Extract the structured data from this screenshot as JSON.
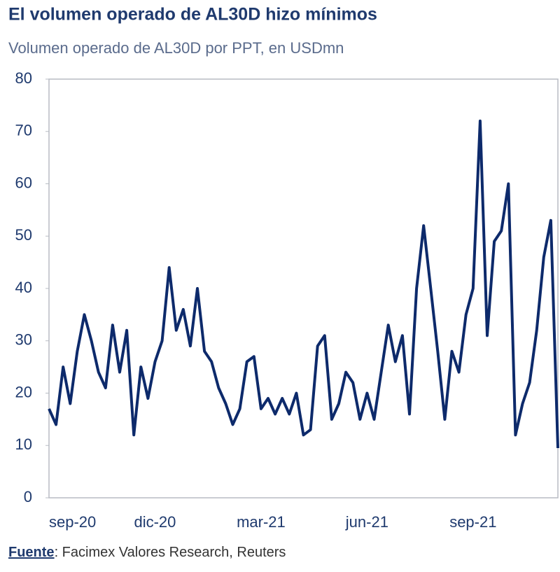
{
  "chart_data": {
    "type": "line",
    "title": "El volumen operado de AL30D hizo mínimos",
    "subtitle": "Volumen operado de AL30D por PPT, en USDmn",
    "source_label": "Fuente",
    "source_text": ": Facimex Valores Research, Reuters",
    "categories": [
      "sep-20",
      null,
      null,
      null,
      null,
      null,
      null,
      null,
      null,
      null,
      null,
      null,
      null,
      null,
      null,
      "dic-20",
      null,
      null,
      null,
      null,
      null,
      null,
      null,
      null,
      null,
      null,
      null,
      null,
      null,
      null,
      "mar-21",
      null,
      null,
      null,
      null,
      null,
      null,
      null,
      null,
      null,
      null,
      null,
      null,
      null,
      null,
      "jun-21",
      null,
      null,
      null,
      null,
      null,
      null,
      null,
      null,
      null,
      null,
      null,
      null,
      null,
      null,
      "sep-21",
      null,
      null,
      null,
      null,
      null,
      null,
      null,
      null,
      null,
      null,
      null,
      null
    ],
    "series": [
      {
        "name": "AL30D",
        "color": "#0d2a6b",
        "values": [
          17,
          14,
          25,
          18,
          28,
          35,
          30,
          24,
          21,
          33,
          24,
          32,
          12,
          25,
          19,
          26,
          30,
          44,
          32,
          36,
          29,
          40,
          28,
          26,
          21,
          18,
          14,
          17,
          26,
          27,
          17,
          19,
          16,
          19,
          16,
          20,
          12,
          13,
          29,
          31,
          15,
          18,
          24,
          22,
          15,
          20,
          15,
          24,
          33,
          26,
          31,
          16,
          40,
          52,
          40,
          28,
          15,
          28,
          24,
          35,
          40,
          72,
          31,
          49,
          51,
          60,
          12,
          18,
          22,
          32,
          46,
          53,
          9.5
        ]
      }
    ],
    "ylim": [
      0,
      80
    ],
    "yticks": [
      0,
      10,
      20,
      30,
      40,
      50,
      60,
      70,
      80
    ],
    "grid": false
  }
}
